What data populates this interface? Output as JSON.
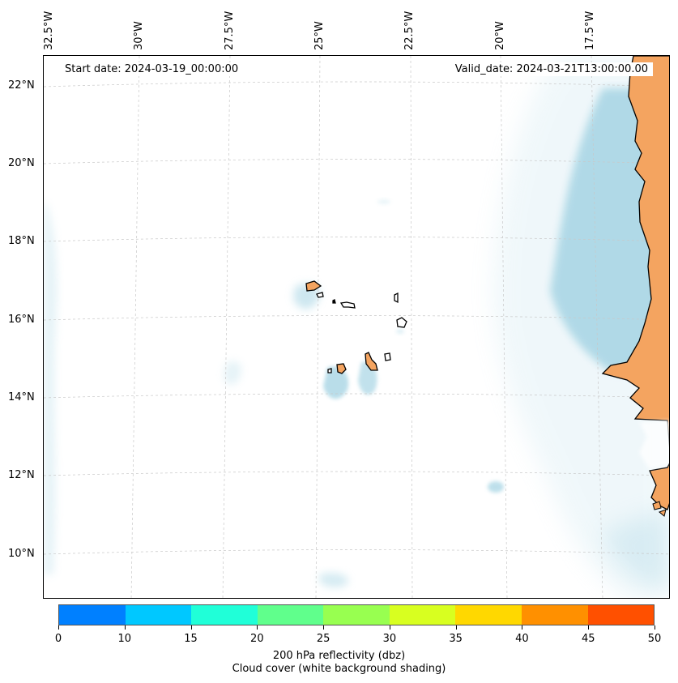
{
  "map": {
    "start_date": "Start date: 2024-03-19_00:00:00",
    "valid_date": "Valid_date: 2024-03-21T13:00:00.00",
    "longitude_labels": [
      "32.5°W",
      "30°W",
      "27.5°W",
      "25°W",
      "22.5°W",
      "20°W",
      "17.5°W"
    ],
    "latitude_labels": [
      "22°N",
      "20°N",
      "18°N",
      "16°N",
      "14°N",
      "12°N",
      "10°N"
    ],
    "land_color": "#f4a460",
    "cloud_color": "#add8e6",
    "region": "Cabo Verde islands and West African coast"
  },
  "colorbar": {
    "ticks": [
      "0",
      "10",
      "15",
      "20",
      "25",
      "30",
      "35",
      "40",
      "45",
      "50"
    ],
    "colors": [
      "#0080ff",
      "#00c8ff",
      "#20ffd8",
      "#60ff8c",
      "#98ff50",
      "#d8ff20",
      "#ffd800",
      "#ff9000",
      "#ff5000"
    ],
    "label": "200 hPa reflectivity (dbz)",
    "sublabel": "Cloud cover (white background shading)"
  }
}
